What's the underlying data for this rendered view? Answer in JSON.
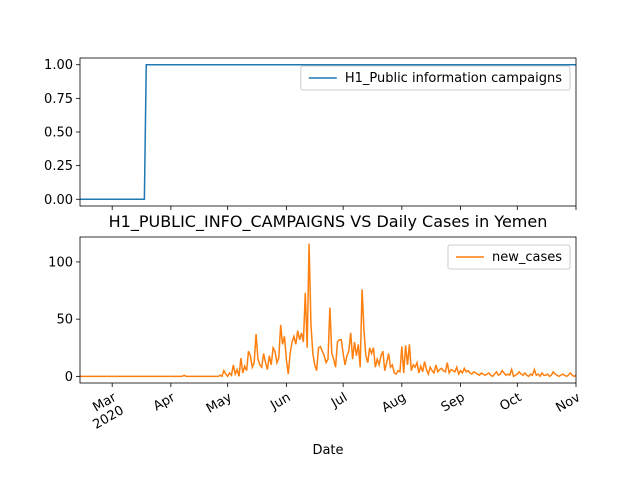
{
  "chart_data": [
    {
      "type": "line",
      "series": [
        {
          "name": "H1_Public information campaigns",
          "color": "#1f77b4",
          "x": [
            0,
            34,
            35,
            262
          ],
          "values": [
            0,
            0,
            1,
            1
          ]
        }
      ],
      "xlim": [
        0,
        262
      ],
      "ylim": [
        -0.05,
        1.05
      ],
      "yticks": [
        {
          "value": 0,
          "label": "0.00"
        },
        {
          "value": 0.25,
          "label": "0.25"
        },
        {
          "value": 0.5,
          "label": "0.50"
        },
        {
          "value": 0.75,
          "label": "0.75"
        },
        {
          "value": 1,
          "label": "1.00"
        }
      ],
      "legend": "upper right"
    },
    {
      "type": "line",
      "title": "H1_PUBLIC_INFO_CAMPAIGNS VS Daily Cases in Yemen",
      "xlabel": "Date",
      "series": [
        {
          "name": "new_cases",
          "color": "#ff7f0e",
          "values": [
            0,
            0,
            0,
            0,
            0,
            0,
            0,
            0,
            0,
            0,
            0,
            0,
            0,
            0,
            0,
            0,
            0,
            0,
            0,
            0,
            0,
            0,
            0,
            0,
            0,
            0,
            0,
            0,
            0,
            0,
            0,
            0,
            0,
            0,
            0,
            0,
            0,
            0,
            0,
            0,
            0,
            0,
            0,
            0,
            0,
            0,
            0,
            0,
            0,
            0,
            0,
            0,
            0,
            0,
            0,
            1,
            0,
            0,
            0,
            0,
            0,
            0,
            0,
            0,
            0,
            0,
            0,
            0,
            0,
            0,
            0,
            0,
            0,
            0,
            1,
            0,
            5,
            2,
            0,
            3,
            1,
            10,
            2,
            6,
            0,
            16,
            3,
            9,
            5,
            22,
            18,
            8,
            12,
            37,
            15,
            10,
            8,
            20,
            12,
            6,
            18,
            10,
            25,
            22,
            12,
            16,
            45,
            28,
            35,
            15,
            2,
            20,
            30,
            35,
            28,
            40,
            32,
            38,
            30,
            73,
            25,
            116,
            45,
            20,
            10,
            5,
            25,
            26,
            22,
            18,
            12,
            15,
            60,
            20,
            15,
            8,
            30,
            32,
            32,
            20,
            10,
            18,
            22,
            38,
            15,
            30,
            18,
            28,
            8,
            76,
            40,
            18,
            12,
            25,
            20,
            25,
            8,
            15,
            10,
            18,
            22,
            5,
            12,
            20,
            8,
            10,
            3,
            2,
            5,
            4,
            26,
            3,
            27,
            10,
            28,
            5,
            10,
            8,
            12,
            3,
            9,
            4,
            13,
            6,
            2,
            8,
            5,
            3,
            10,
            4,
            6,
            7,
            5,
            4,
            12,
            3,
            6,
            5,
            4,
            8,
            2,
            5,
            3,
            7,
            4,
            5,
            3,
            2,
            4,
            3,
            2,
            1,
            3,
            2,
            1,
            2,
            3,
            1,
            0,
            2,
            4,
            1,
            2,
            5,
            3,
            1,
            2,
            1,
            6,
            0,
            1,
            2,
            4,
            2,
            1,
            3,
            1,
            0,
            2,
            1,
            6,
            1,
            2,
            0,
            3,
            1,
            1,
            2,
            0,
            1,
            4,
            2,
            1,
            0,
            1,
            2,
            1,
            0,
            1,
            3,
            1,
            0,
            1
          ]
        }
      ],
      "xlim": [
        0,
        262
      ],
      "ylim": [
        -5.8,
        121.8
      ],
      "yticks": [
        0,
        50,
        100
      ],
      "xticks": [
        {
          "value": 17,
          "label": "Mar\n2020"
        },
        {
          "value": 48,
          "label": "Apr"
        },
        {
          "value": 78,
          "label": "May"
        },
        {
          "value": 109,
          "label": "Jun"
        },
        {
          "value": 139,
          "label": "Jul"
        },
        {
          "value": 170,
          "label": "Aug"
        },
        {
          "value": 201,
          "label": "Sep"
        },
        {
          "value": 231,
          "label": "Oct"
        },
        {
          "value": 262,
          "label": "Nov"
        }
      ],
      "legend": "upper right"
    }
  ]
}
